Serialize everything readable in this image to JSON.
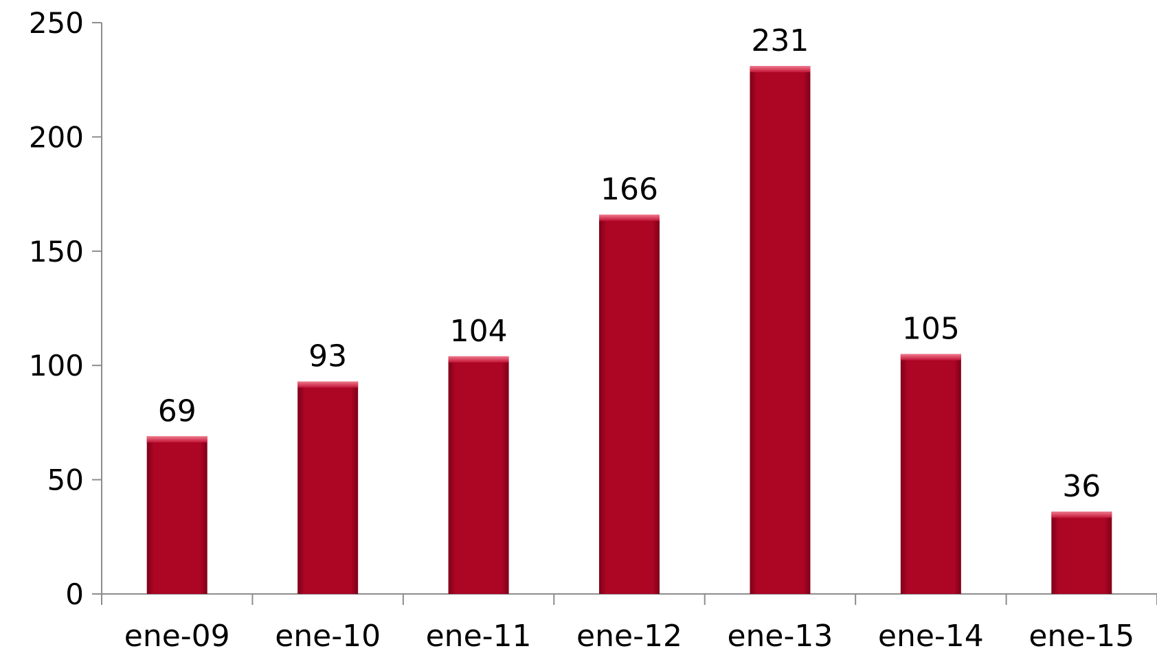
{
  "chart_data": {
    "type": "bar",
    "categories": [
      "ene-09",
      "ene-10",
      "ene-11",
      "ene-12",
      "ene-13",
      "ene-14",
      "ene-15"
    ],
    "values": [
      69,
      93,
      104,
      166,
      231,
      105,
      36
    ],
    "data_labels": [
      "69",
      "93",
      "104",
      "166",
      "231",
      "105",
      "36"
    ],
    "ylim": [
      0,
      250
    ],
    "yticks": [
      0,
      50,
      100,
      150,
      200,
      250
    ],
    "ytick_labels": [
      "0",
      "50",
      "100",
      "150",
      "200",
      "250"
    ],
    "grid": false,
    "legend": "none",
    "bar_color": "#ad0625",
    "bar_highlight": "#e0546c"
  }
}
